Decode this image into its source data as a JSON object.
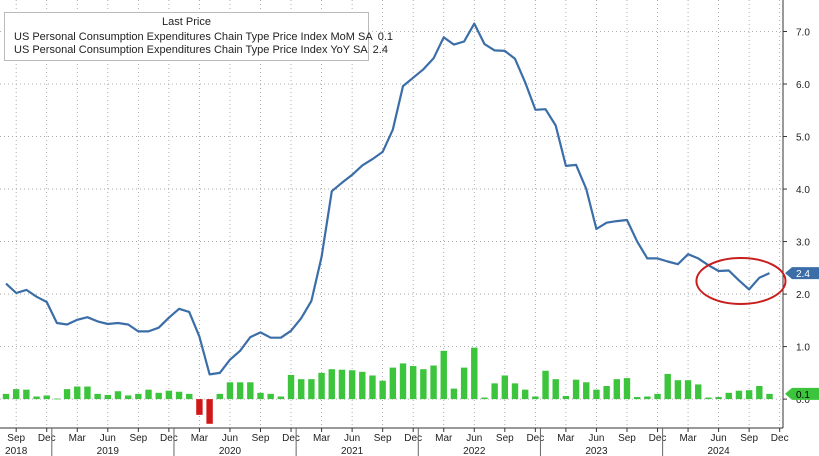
{
  "legend": {
    "header": "Last Price",
    "items": [
      {
        "label": "US Personal Consumption Expenditures Chain Type Price Index MoM SA",
        "value": "0.1",
        "color": "#3cc43c"
      },
      {
        "label": "US Personal Consumption Expenditures Chain Type Price Index YoY SA",
        "value": "2.4",
        "color": "#3b6ea8"
      }
    ]
  },
  "chart_data": {
    "type": "line",
    "x_start": "2018-08",
    "x_labels": [
      {
        "date": "2018-09",
        "month": "Sep",
        "year": "2018"
      },
      {
        "date": "2018-12",
        "month": "Dec"
      },
      {
        "date": "2019-03",
        "month": "Mar"
      },
      {
        "date": "2019-06",
        "month": "Jun",
        "year": "2019"
      },
      {
        "date": "2019-09",
        "month": "Sep"
      },
      {
        "date": "2019-12",
        "month": "Dec"
      },
      {
        "date": "2020-03",
        "month": "Mar"
      },
      {
        "date": "2020-06",
        "month": "Jun",
        "year": "2020"
      },
      {
        "date": "2020-09",
        "month": "Sep"
      },
      {
        "date": "2020-12",
        "month": "Dec"
      },
      {
        "date": "2021-03",
        "month": "Mar"
      },
      {
        "date": "2021-06",
        "month": "Jun",
        "year": "2021"
      },
      {
        "date": "2021-09",
        "month": "Sep"
      },
      {
        "date": "2021-12",
        "month": "Dec"
      },
      {
        "date": "2022-03",
        "month": "Mar"
      },
      {
        "date": "2022-06",
        "month": "Jun",
        "year": "2022"
      },
      {
        "date": "2022-09",
        "month": "Sep"
      },
      {
        "date": "2022-12",
        "month": "Dec"
      },
      {
        "date": "2023-03",
        "month": "Mar"
      },
      {
        "date": "2023-06",
        "month": "Jun",
        "year": "2023"
      },
      {
        "date": "2023-09",
        "month": "Sep"
      },
      {
        "date": "2023-12",
        "month": "Dec"
      },
      {
        "date": "2024-03",
        "month": "Mar"
      },
      {
        "date": "2024-06",
        "month": "Jun",
        "year": "2024"
      },
      {
        "date": "2024-09",
        "month": "Sep"
      },
      {
        "date": "2024-12",
        "month": "Dec"
      }
    ],
    "y_ticks": [
      7.0,
      6.0,
      5.0,
      4.0,
      3.0,
      2.0,
      1.0,
      0.0
    ],
    "y_tick_labels": [
      "7.0",
      "6.0",
      "5.0",
      "4.0",
      "3.0",
      "2.0",
      "1.0",
      "0.0"
    ],
    "ylim": [
      -0.55,
      7.6
    ],
    "grid": true,
    "series": [
      {
        "name": "US Personal Consumption Expenditures Chain Type Price Index YoY SA",
        "kind": "line",
        "color": "#3b6ea8",
        "last_label": "2.4",
        "dates": [
          "2018-08",
          "2018-09",
          "2018-10",
          "2018-11",
          "2018-12",
          "2019-01",
          "2019-02",
          "2019-03",
          "2019-04",
          "2019-05",
          "2019-06",
          "2019-07",
          "2019-08",
          "2019-09",
          "2019-10",
          "2019-11",
          "2019-12",
          "2020-01",
          "2020-02",
          "2020-03",
          "2020-04",
          "2020-05",
          "2020-06",
          "2020-07",
          "2020-08",
          "2020-09",
          "2020-10",
          "2020-11",
          "2020-12",
          "2021-01",
          "2021-02",
          "2021-03",
          "2021-04",
          "2021-05",
          "2021-06",
          "2021-07",
          "2021-08",
          "2021-09",
          "2021-10",
          "2021-11",
          "2021-12",
          "2022-01",
          "2022-02",
          "2022-03",
          "2022-04",
          "2022-05",
          "2022-06",
          "2022-07",
          "2022-08",
          "2022-09",
          "2022-10",
          "2022-11",
          "2022-12",
          "2023-01",
          "2023-02",
          "2023-03",
          "2023-04",
          "2023-05",
          "2023-06",
          "2023-07",
          "2023-08",
          "2023-09",
          "2023-10",
          "2023-11",
          "2023-12",
          "2024-01",
          "2024-02",
          "2024-03",
          "2024-04",
          "2024-05",
          "2024-06",
          "2024-07",
          "2024-08",
          "2024-09",
          "2024-10",
          "2024-11"
        ],
        "values": [
          2.2,
          2.02,
          2.08,
          1.95,
          1.85,
          1.45,
          1.42,
          1.51,
          1.56,
          1.48,
          1.43,
          1.45,
          1.42,
          1.29,
          1.29,
          1.36,
          1.55,
          1.72,
          1.66,
          1.19,
          0.47,
          0.5,
          0.75,
          0.92,
          1.18,
          1.27,
          1.17,
          1.17,
          1.3,
          1.54,
          1.87,
          2.71,
          3.96,
          4.12,
          4.27,
          4.45,
          4.57,
          4.71,
          5.13,
          5.96,
          6.12,
          6.28,
          6.49,
          6.89,
          6.75,
          6.81,
          7.15,
          6.76,
          6.64,
          6.63,
          6.48,
          6.03,
          5.51,
          5.52,
          5.21,
          4.44,
          4.46,
          4.0,
          3.24,
          3.36,
          3.39,
          3.41,
          3.0,
          2.68,
          2.68,
          2.62,
          2.57,
          2.76,
          2.68,
          2.55,
          2.44,
          2.45,
          2.26,
          2.09,
          2.31,
          2.4
        ]
      },
      {
        "name": "US Personal Consumption Expenditures Chain Type Price Index MoM SA",
        "kind": "bar",
        "color": "#3cc43c",
        "negative_color": "#d01818",
        "last_label": "0.1",
        "dates": [
          "2018-08",
          "2018-09",
          "2018-10",
          "2018-11",
          "2018-12",
          "2019-01",
          "2019-02",
          "2019-03",
          "2019-04",
          "2019-05",
          "2019-06",
          "2019-07",
          "2019-08",
          "2019-09",
          "2019-10",
          "2019-11",
          "2019-12",
          "2020-01",
          "2020-02",
          "2020-03",
          "2020-04",
          "2020-05",
          "2020-06",
          "2020-07",
          "2020-08",
          "2020-09",
          "2020-10",
          "2020-11",
          "2020-12",
          "2021-01",
          "2021-02",
          "2021-03",
          "2021-04",
          "2021-05",
          "2021-06",
          "2021-07",
          "2021-08",
          "2021-09",
          "2021-10",
          "2021-11",
          "2021-12",
          "2022-01",
          "2022-02",
          "2022-03",
          "2022-04",
          "2022-05",
          "2022-06",
          "2022-07",
          "2022-08",
          "2022-09",
          "2022-10",
          "2022-11",
          "2022-12",
          "2023-01",
          "2023-02",
          "2023-03",
          "2023-04",
          "2023-05",
          "2023-06",
          "2023-07",
          "2023-08",
          "2023-09",
          "2023-10",
          "2023-11",
          "2023-12",
          "2024-01",
          "2024-02",
          "2024-03",
          "2024-04",
          "2024-05",
          "2024-06",
          "2024-07",
          "2024-08",
          "2024-09",
          "2024-10",
          "2024-11"
        ],
        "values": [
          0.1,
          0.19,
          0.18,
          0.05,
          0.07,
          0.01,
          0.19,
          0.24,
          0.24,
          0.1,
          0.08,
          0.15,
          0.07,
          0.1,
          0.18,
          0.12,
          0.16,
          0.14,
          0.1,
          -0.3,
          -0.47,
          0.1,
          0.32,
          0.32,
          0.32,
          0.12,
          0.1,
          0.05,
          0.46,
          0.38,
          0.38,
          0.5,
          0.57,
          0.56,
          0.55,
          0.52,
          0.45,
          0.35,
          0.6,
          0.68,
          0.63,
          0.57,
          0.64,
          0.92,
          0.2,
          0.6,
          0.98,
          0.03,
          0.3,
          0.45,
          0.3,
          0.18,
          0.05,
          0.54,
          0.38,
          0.06,
          0.37,
          0.32,
          0.18,
          0.25,
          0.38,
          0.4,
          0.04,
          0.05,
          0.1,
          0.48,
          0.36,
          0.36,
          0.28,
          0.03,
          0.04,
          0.12,
          0.16,
          0.17,
          0.25,
          0.1
        ]
      }
    ],
    "annotation": {
      "type": "ellipse",
      "around_dates": [
        "2024-05",
        "2024-11"
      ],
      "color": "#c81e1e"
    }
  }
}
